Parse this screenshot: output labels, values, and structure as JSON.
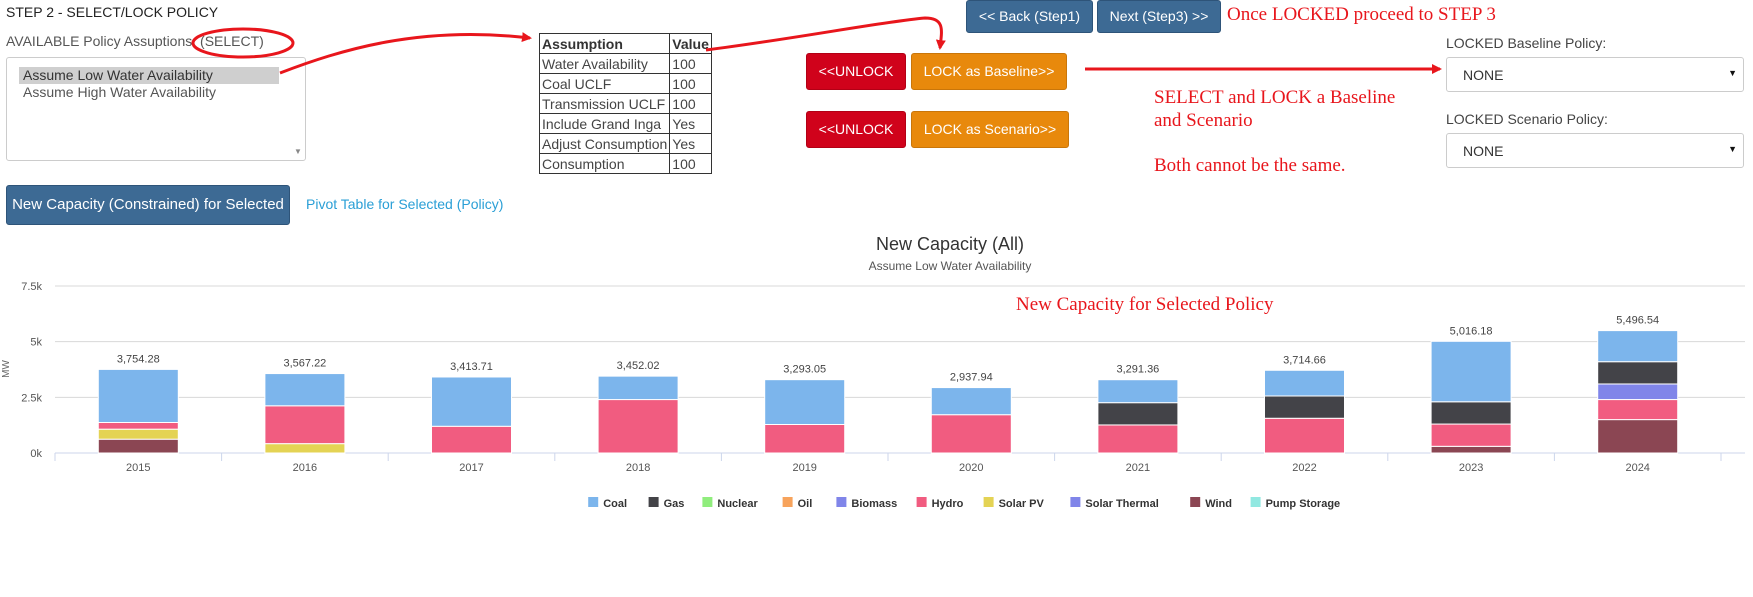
{
  "page": {
    "step_title": "STEP 2 - SELECT/LOCK POLICY",
    "available_label": "AVAILABLE Policy Assuptions: ",
    "available_select_hint": "(SELECT)"
  },
  "policy_list": {
    "options": [
      "Assume Low Water Availability",
      "Assume High Water Availability"
    ],
    "selected": "Assume Low Water Availability"
  },
  "assumptions_table": {
    "headers": [
      "Assumption",
      "Value"
    ],
    "rows": [
      [
        "Water Availability",
        "100"
      ],
      [
        "Coal UCLF",
        "100"
      ],
      [
        "Transmission UCLF",
        "100"
      ],
      [
        "Include Grand Inga",
        "Yes"
      ],
      [
        "Adjust Consumption",
        "Yes"
      ],
      [
        "Consumption",
        "100"
      ]
    ]
  },
  "nav": {
    "back_label": "<< Back (Step1)",
    "next_label": "Next (Step3) >>"
  },
  "lock_buttons": {
    "unlock_baseline_label": "<<UNLOCK",
    "lock_baseline_label": "LOCK as Baseline>>",
    "unlock_scenario_label": "<<UNLOCK",
    "lock_scenario_label": "LOCK as Scenario>>"
  },
  "locked": {
    "baseline_label": "LOCKED Baseline Policy:",
    "baseline_value": "NONE",
    "scenario_label": "LOCKED Scenario Policy:",
    "scenario_value": "NONE"
  },
  "annotations": {
    "locked_proceed": "Once LOCKED proceed to STEP 3",
    "select_lock_line1": "SELECT and LOCK a Baseline",
    "select_lock_line2": "and Scenario",
    "both_cannot": "Both cannot be the same.",
    "chart_note": "New Capacity for Selected Policy",
    "color": "#e8161c"
  },
  "actions": {
    "new_capacity_button": "New Capacity (Constrained) for Selected",
    "pivot_link": "Pivot Table for Selected (Policy)"
  },
  "chart_data": {
    "type": "bar",
    "stacked": true,
    "title": "New Capacity (All)",
    "subtitle": "Assume Low Water Availability",
    "ylabel": "MW",
    "xlabel": "",
    "ylim": [
      0,
      7500
    ],
    "yticks": [
      0,
      2500,
      5000,
      7500
    ],
    "ytick_labels": [
      "0k",
      "2.5k",
      "5k",
      "7.5k"
    ],
    "grid": true,
    "legend_position": "bottom-center",
    "categories": [
      "2015",
      "2016",
      "2017",
      "2018",
      "2019",
      "2020",
      "2021",
      "2022",
      "2023",
      "2024"
    ],
    "totals": [
      3754.28,
      3567.22,
      3413.71,
      3452.02,
      3293.05,
      2937.94,
      3291.36,
      3714.66,
      5016.18,
      5496.54
    ],
    "total_labels": [
      "3,754.28",
      "3,567.22",
      "3,413.71",
      "3,452.02",
      "3,293.05",
      "2,937.94",
      "3,291.36",
      "3,714.66",
      "5,016.18",
      "5,496.54"
    ],
    "series": [
      {
        "name": "Wind",
        "color": "#8b4653",
        "values": [
          620,
          0,
          0,
          0,
          0,
          0,
          0,
          0,
          300,
          1500
        ]
      },
      {
        "name": "Solar PV",
        "color": "#e4d354",
        "values": [
          450,
          420,
          0,
          0,
          0,
          0,
          0,
          0,
          0,
          0
        ]
      },
      {
        "name": "Hydro",
        "color": "#f15c80",
        "values": [
          300,
          1700,
          1200,
          2400,
          1280,
          1720,
          1260,
          1560,
          1000,
          900
        ]
      },
      {
        "name": "Solar Thermal",
        "color": "#8085e9",
        "values": [
          0,
          0,
          0,
          0,
          0,
          0,
          0,
          0,
          0,
          700
        ]
      },
      {
        "name": "Gas",
        "color": "#434348",
        "values": [
          0,
          0,
          0,
          0,
          0,
          0,
          1000,
          1000,
          1000,
          1000
        ]
      },
      {
        "name": "Coal",
        "color": "#7cb5ec",
        "values": [
          2384.28,
          1447.22,
          2213.71,
          1052.02,
          2013.05,
          1217.94,
          1031.36,
          1154.66,
          2716.18,
          1396.54
        ]
      }
    ],
    "legend": [
      {
        "name": "Coal",
        "color": "#7cb5ec"
      },
      {
        "name": "Gas",
        "color": "#434348"
      },
      {
        "name": "Nuclear",
        "color": "#90ed7d"
      },
      {
        "name": "Oil",
        "color": "#f7a35c"
      },
      {
        "name": "Biomass",
        "color": "#8085e9"
      },
      {
        "name": "Hydro",
        "color": "#f15c80"
      },
      {
        "name": "Solar PV",
        "color": "#e4d354"
      },
      {
        "name": "Solar Thermal",
        "color": "#8085e9"
      },
      {
        "name": "Wind",
        "color": "#8b4653"
      },
      {
        "name": "Pump Storage",
        "color": "#91e8e1"
      }
    ]
  }
}
